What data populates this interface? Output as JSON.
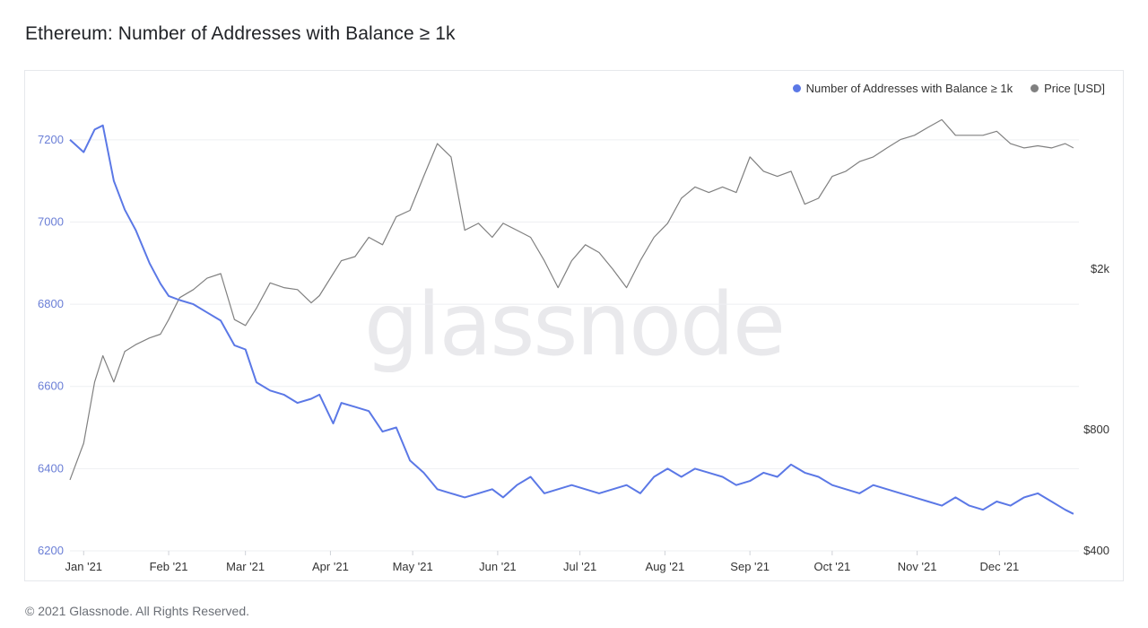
{
  "header": {
    "title": "Ethereum: Number of Addresses with Balance ≥ 1k"
  },
  "footer": {
    "copyright": "© 2021 Glassnode. All Rights Reserved."
  },
  "watermark": "glassnode",
  "legend": [
    {
      "label": "Number of Addresses with Balance ≥ 1k",
      "color": "#5b78e6"
    },
    {
      "label": "Price [USD]",
      "color": "#808080"
    }
  ],
  "chart_data": {
    "type": "line",
    "title": "Ethereum: Number of Addresses with Balance ≥ 1k",
    "x_ticks": [
      "Jan '21",
      "Feb '21",
      "Mar '21",
      "Apr '21",
      "May '21",
      "Jun '21",
      "Jul '21",
      "Aug '21",
      "Sep '21",
      "Oct '21",
      "Nov '21",
      "Dec '21"
    ],
    "y_left": {
      "ticks": [
        6200,
        6400,
        6600,
        6800,
        7000,
        7200
      ],
      "range": [
        6200,
        7300
      ]
    },
    "y_right": {
      "ticks": [
        "$400",
        "$800",
        "$2k"
      ],
      "tick_values": [
        400,
        800,
        2000
      ],
      "scale": "log",
      "range": [
        400,
        5300
      ]
    },
    "grid": "horizontal",
    "legend_position": "top-right",
    "series": [
      {
        "name": "Number of Addresses with Balance ≥ 1k",
        "axis": "left",
        "color": "#5b78e6",
        "x": [
          "2020-12-27",
          "2021-01-01",
          "2021-01-05",
          "2021-01-08",
          "2021-01-12",
          "2021-01-16",
          "2021-01-20",
          "2021-01-25",
          "2021-01-29",
          "2021-02-01",
          "2021-02-05",
          "2021-02-10",
          "2021-02-15",
          "2021-02-20",
          "2021-02-25",
          "2021-03-01",
          "2021-03-05",
          "2021-03-10",
          "2021-03-15",
          "2021-03-20",
          "2021-03-25",
          "2021-03-28",
          "2021-04-02",
          "2021-04-05",
          "2021-04-10",
          "2021-04-15",
          "2021-04-20",
          "2021-04-25",
          "2021-04-30",
          "2021-05-05",
          "2021-05-10",
          "2021-05-15",
          "2021-05-20",
          "2021-05-25",
          "2021-05-30",
          "2021-06-03",
          "2021-06-08",
          "2021-06-13",
          "2021-06-18",
          "2021-06-23",
          "2021-06-28",
          "2021-07-03",
          "2021-07-08",
          "2021-07-13",
          "2021-07-18",
          "2021-07-23",
          "2021-07-28",
          "2021-08-02",
          "2021-08-07",
          "2021-08-12",
          "2021-08-17",
          "2021-08-22",
          "2021-08-27",
          "2021-09-01",
          "2021-09-06",
          "2021-09-11",
          "2021-09-16",
          "2021-09-21",
          "2021-09-26",
          "2021-10-01",
          "2021-10-06",
          "2021-10-11",
          "2021-10-16",
          "2021-10-21",
          "2021-10-26",
          "2021-10-31",
          "2021-11-05",
          "2021-11-10",
          "2021-11-15",
          "2021-11-20",
          "2021-11-25",
          "2021-11-30",
          "2021-12-05",
          "2021-12-10",
          "2021-12-15",
          "2021-12-20",
          "2021-12-25",
          "2021-12-28"
        ],
        "values": [
          7200,
          7170,
          7225,
          7235,
          7100,
          7030,
          6980,
          6900,
          6850,
          6820,
          6810,
          6800,
          6780,
          6760,
          6700,
          6690,
          6610,
          6590,
          6580,
          6560,
          6570,
          6580,
          6510,
          6560,
          6550,
          6540,
          6490,
          6500,
          6420,
          6390,
          6350,
          6340,
          6330,
          6340,
          6350,
          6330,
          6360,
          6380,
          6340,
          6350,
          6360,
          6350,
          6340,
          6350,
          6360,
          6340,
          6380,
          6400,
          6380,
          6400,
          6390,
          6380,
          6360,
          6370,
          6390,
          6380,
          6410,
          6390,
          6380,
          6360,
          6350,
          6340,
          6360,
          6350,
          6340,
          6330,
          6320,
          6310,
          6330,
          6310,
          6300,
          6320,
          6310,
          6330,
          6340,
          6320,
          6300,
          6290
        ]
      },
      {
        "name": "Price [USD]",
        "axis": "right",
        "color": "#808080",
        "x": [
          "2020-12-27",
          "2021-01-01",
          "2021-01-05",
          "2021-01-08",
          "2021-01-12",
          "2021-01-16",
          "2021-01-20",
          "2021-01-25",
          "2021-01-29",
          "2021-02-01",
          "2021-02-05",
          "2021-02-10",
          "2021-02-15",
          "2021-02-20",
          "2021-02-25",
          "2021-03-01",
          "2021-03-05",
          "2021-03-10",
          "2021-03-15",
          "2021-03-20",
          "2021-03-25",
          "2021-03-28",
          "2021-04-02",
          "2021-04-05",
          "2021-04-10",
          "2021-04-15",
          "2021-04-20",
          "2021-04-25",
          "2021-04-30",
          "2021-05-05",
          "2021-05-10",
          "2021-05-15",
          "2021-05-20",
          "2021-05-25",
          "2021-05-30",
          "2021-06-03",
          "2021-06-08",
          "2021-06-13",
          "2021-06-18",
          "2021-06-23",
          "2021-06-28",
          "2021-07-03",
          "2021-07-08",
          "2021-07-13",
          "2021-07-18",
          "2021-07-23",
          "2021-07-28",
          "2021-08-02",
          "2021-08-07",
          "2021-08-12",
          "2021-08-17",
          "2021-08-22",
          "2021-08-27",
          "2021-09-01",
          "2021-09-06",
          "2021-09-11",
          "2021-09-16",
          "2021-09-21",
          "2021-09-26",
          "2021-10-01",
          "2021-10-06",
          "2021-10-11",
          "2021-10-16",
          "2021-10-21",
          "2021-10-26",
          "2021-10-31",
          "2021-11-05",
          "2021-11-10",
          "2021-11-15",
          "2021-11-20",
          "2021-11-25",
          "2021-11-30",
          "2021-12-05",
          "2021-12-10",
          "2021-12-15",
          "2021-12-20",
          "2021-12-25",
          "2021-12-28"
        ],
        "values": [
          600,
          740,
          1050,
          1220,
          1050,
          1250,
          1300,
          1350,
          1380,
          1500,
          1700,
          1780,
          1900,
          1950,
          1500,
          1450,
          1600,
          1850,
          1800,
          1780,
          1650,
          1720,
          1950,
          2100,
          2150,
          2400,
          2300,
          2700,
          2800,
          3400,
          4100,
          3800,
          2500,
          2600,
          2400,
          2600,
          2500,
          2400,
          2100,
          1800,
          2100,
          2300,
          2200,
          2000,
          1800,
          2100,
          2400,
          2600,
          3000,
          3200,
          3100,
          3200,
          3100,
          3800,
          3500,
          3400,
          3500,
          2900,
          3000,
          3400,
          3500,
          3700,
          3800,
          4000,
          4200,
          4300,
          4500,
          4700,
          4300,
          4300,
          4300,
          4400,
          4100,
          4000,
          4050,
          4000,
          4100,
          4000
        ]
      }
    ]
  }
}
